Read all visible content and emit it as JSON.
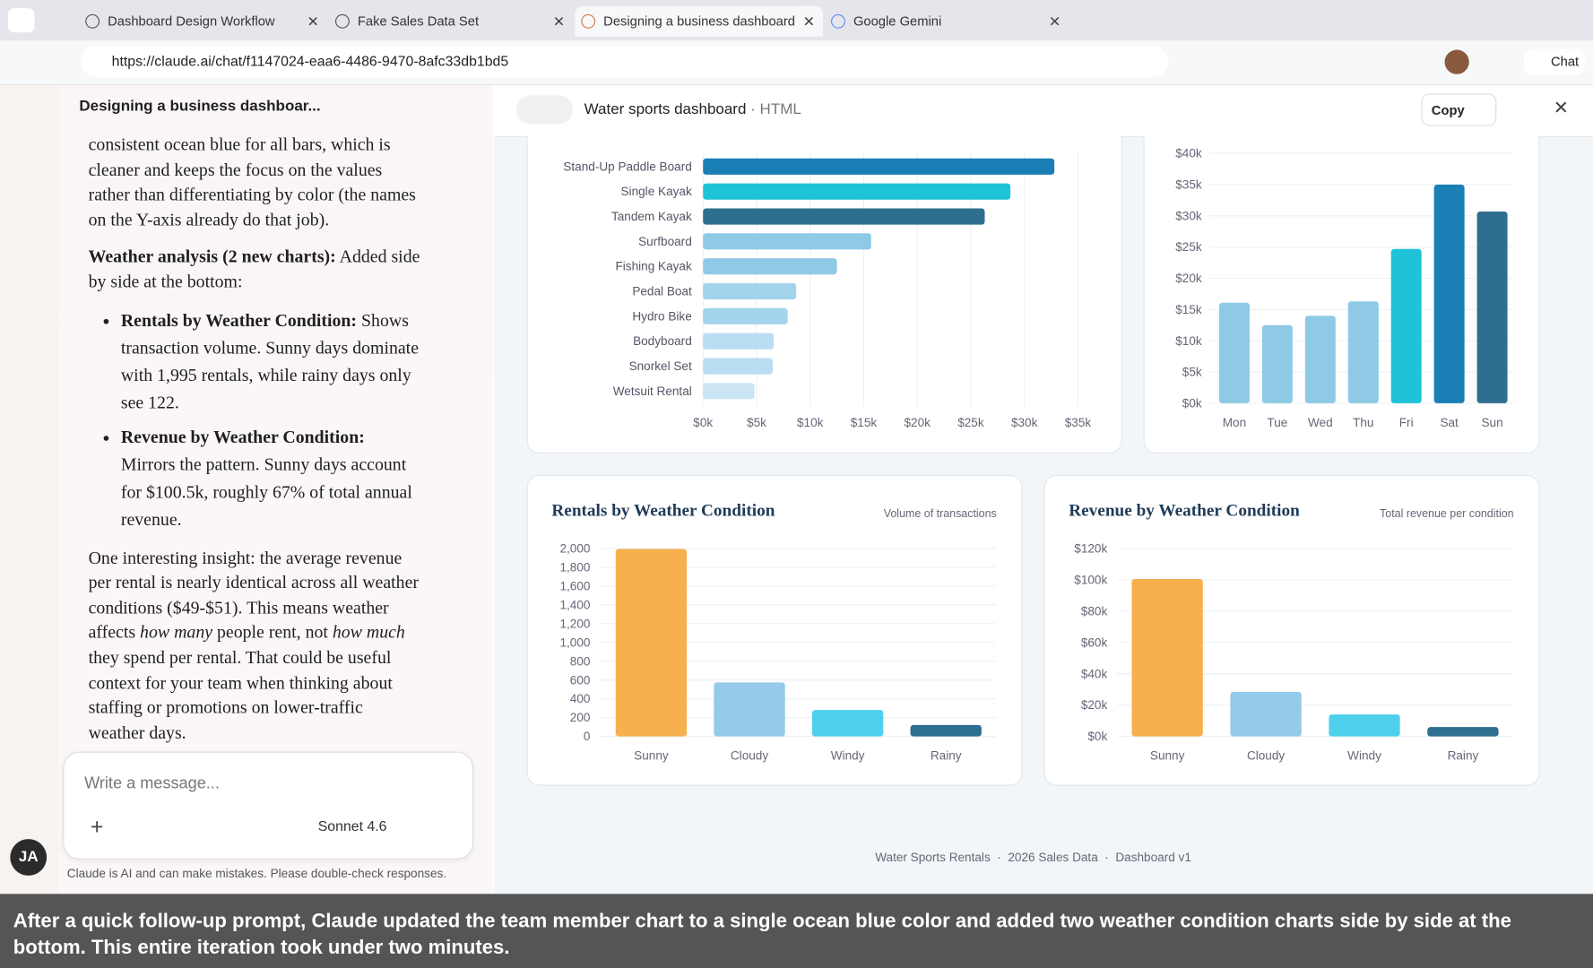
{
  "browser": {
    "tabs": [
      "Dashboard Design Workflow",
      "Fake Sales Data Set",
      "Designing a business dashboard for",
      "Google Gemini"
    ],
    "url": "https://claude.ai/chat/f1147024-eaa6-4486-9470-8afc33db1bd5",
    "chat_button": "Chat"
  },
  "sidebar": {
    "avatar": "JA"
  },
  "chat": {
    "title": "Designing a business dashboar...",
    "intro": "consistent ocean blue for all bars, which is cleaner and keeps the focus on the values rather than differentiating by color (the names on the Y-axis already do that job).",
    "weather_heading": "Weather analysis (2 new charts):",
    "weather_text": " Added side by side at the bottom:",
    "bullets": [
      {
        "label": "Rentals by Weather Condition:",
        "text": " Shows transaction volume. Sunny days dominate with 1,995 rentals, while rainy days only see 122."
      },
      {
        "label": "Revenue by Weather Condition:",
        "text": " Mirrors the pattern. Sunny days account for $100.5k, roughly 67% of total annual revenue."
      }
    ],
    "insight": [
      "One interesting insight: the average revenue per rental is nearly identical across all weather conditions ($49-$51). This means weather affects ",
      "how many",
      " people rent, not ",
      "how much",
      " they spend per rental. That could be useful context for your team when thinking about staffing or promotions on lower-traffic weather days."
    ],
    "placeholder": "Write a message...",
    "model": "Sonnet 4.6",
    "disclaimer": "Claude is AI and can make mistakes. Please double-check responses."
  },
  "artifact": {
    "title": "Water sports dashboard",
    "subtitle": "· HTML",
    "copy": "Copy",
    "footer": "Water Sports Rentals  ·  2026 Sales Data  ·  Dashboard v1"
  },
  "chart_data": [
    {
      "type": "bar",
      "horizontal": true,
      "categories": [
        "Stand-Up Paddle Board",
        "Single Kayak",
        "Tandem Kayak",
        "Surfboard",
        "Fishing Kayak",
        "Pedal Boat",
        "Hydro Bike",
        "Bodyboard",
        "Snorkel Set",
        "Wetsuit Rental"
      ],
      "values": [
        32800,
        28700,
        26300,
        15700,
        12500,
        8700,
        7900,
        6600,
        6500,
        4800
      ],
      "colors": [
        "#1a7fb5",
        "#1fc3d8",
        "#2e6e8e",
        "#8ecae6",
        "#8ecae6",
        "#a4d3ec",
        "#a4d3ec",
        "#b9ddf1",
        "#b9ddf1",
        "#cbe5f4"
      ],
      "xlim": [
        0,
        35000
      ],
      "xticks": [
        {
          "value": 0,
          "label": "$0k"
        },
        {
          "value": 5000,
          "label": "$5k"
        },
        {
          "value": 10000,
          "label": "$10k"
        },
        {
          "value": 15000,
          "label": "$15k"
        },
        {
          "value": 20000,
          "label": "$20k"
        },
        {
          "value": 25000,
          "label": "$25k"
        },
        {
          "value": 30000,
          "label": "$30k"
        },
        {
          "value": 35000,
          "label": "$35k"
        }
      ],
      "grid": true
    },
    {
      "type": "bar",
      "categories": [
        "Mon",
        "Tue",
        "Wed",
        "Thu",
        "Fri",
        "Sat",
        "Sun"
      ],
      "values": [
        16100,
        12500,
        14000,
        16300,
        24700,
        35000,
        30700
      ],
      "colors": [
        "#8ecae6",
        "#8ecae6",
        "#8ecae6",
        "#8ecae6",
        "#1fc3d8",
        "#1a7fb5",
        "#2e6e8e"
      ],
      "ylim": [
        0,
        40000
      ],
      "yticks": [
        {
          "value": 0,
          "label": "$0k"
        },
        {
          "value": 5000,
          "label": "$5k"
        },
        {
          "value": 10000,
          "label": "$10k"
        },
        {
          "value": 15000,
          "label": "$15k"
        },
        {
          "value": 20000,
          "label": "$20k"
        },
        {
          "value": 25000,
          "label": "$25k"
        },
        {
          "value": 30000,
          "label": "$30k"
        },
        {
          "value": 35000,
          "label": "$35k"
        },
        {
          "value": 40000,
          "label": "$40k"
        }
      ],
      "grid": true
    },
    {
      "type": "bar",
      "title": "Rentals by Weather Condition",
      "subtitle": "Volume of transactions",
      "categories": [
        "Sunny",
        "Cloudy",
        "Windy",
        "Rainy"
      ],
      "values": [
        1995,
        575,
        281,
        122
      ],
      "colors": [
        "#f7b04e",
        "#93cbe8",
        "#4ed0ec",
        "#2e6e8e"
      ],
      "ylim": [
        0,
        2000
      ],
      "yticks": [
        0,
        200,
        400,
        600,
        800,
        {
          "value": 1000,
          "label": "1,000"
        },
        {
          "value": 1200,
          "label": "1,200"
        },
        {
          "value": 1400,
          "label": "1,400"
        },
        {
          "value": 1600,
          "label": "1,600"
        },
        {
          "value": 1800,
          "label": "1,800"
        },
        {
          "value": 2000,
          "label": "2,000"
        }
      ],
      "grid": true
    },
    {
      "type": "bar",
      "title": "Revenue by Weather Condition",
      "subtitle": "Total revenue per condition",
      "categories": [
        "Sunny",
        "Cloudy",
        "Windy",
        "Rainy"
      ],
      "values": [
        100500,
        28500,
        14000,
        6000
      ],
      "colors": [
        "#f7b04e",
        "#93cbe8",
        "#4ed0ec",
        "#2e6e8e"
      ],
      "ylim": [
        0,
        120000
      ],
      "yticks": [
        {
          "value": 0,
          "label": "$0k"
        },
        {
          "value": 20000,
          "label": "$20k"
        },
        {
          "value": 40000,
          "label": "$40k"
        },
        {
          "value": 60000,
          "label": "$60k"
        },
        {
          "value": 80000,
          "label": "$80k"
        },
        {
          "value": 100000,
          "label": "$100k"
        },
        {
          "value": 120000,
          "label": "$120k"
        }
      ],
      "grid": true
    }
  ],
  "caption": "After a quick follow-up prompt, Claude updated the team member chart to a single ocean blue color and added two weather condition charts side by side at the bottom. This entire iteration took under two minutes."
}
